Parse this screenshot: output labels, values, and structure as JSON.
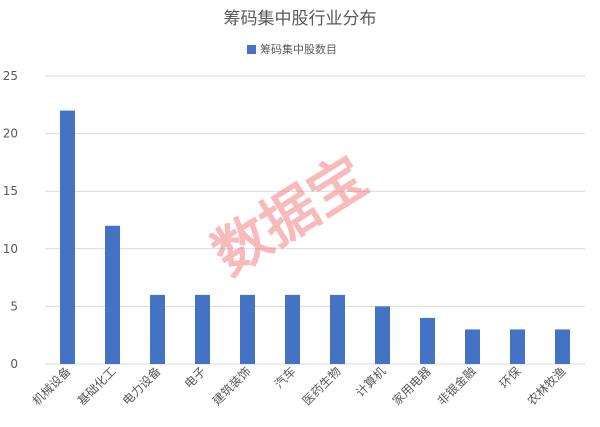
{
  "chart_data": {
    "type": "bar",
    "title": "筹码集中股行业分布",
    "legend": "筹码集中股数目",
    "legend_position": "top",
    "color": "#4472C4",
    "grid": true,
    "ylim": [
      0,
      25
    ],
    "yticks": [
      0,
      5,
      10,
      15,
      20,
      25
    ],
    "categories": [
      "机械设备",
      "基础化工",
      "电力设备",
      "电子",
      "建筑装饰",
      "汽车",
      "医药生物",
      "计算机",
      "家用电器",
      "非银金融",
      "环保",
      "农林牧渔"
    ],
    "values": [
      22,
      12,
      6,
      6,
      6,
      6,
      6,
      5,
      4,
      3,
      3,
      3
    ]
  },
  "watermark": "数据宝"
}
